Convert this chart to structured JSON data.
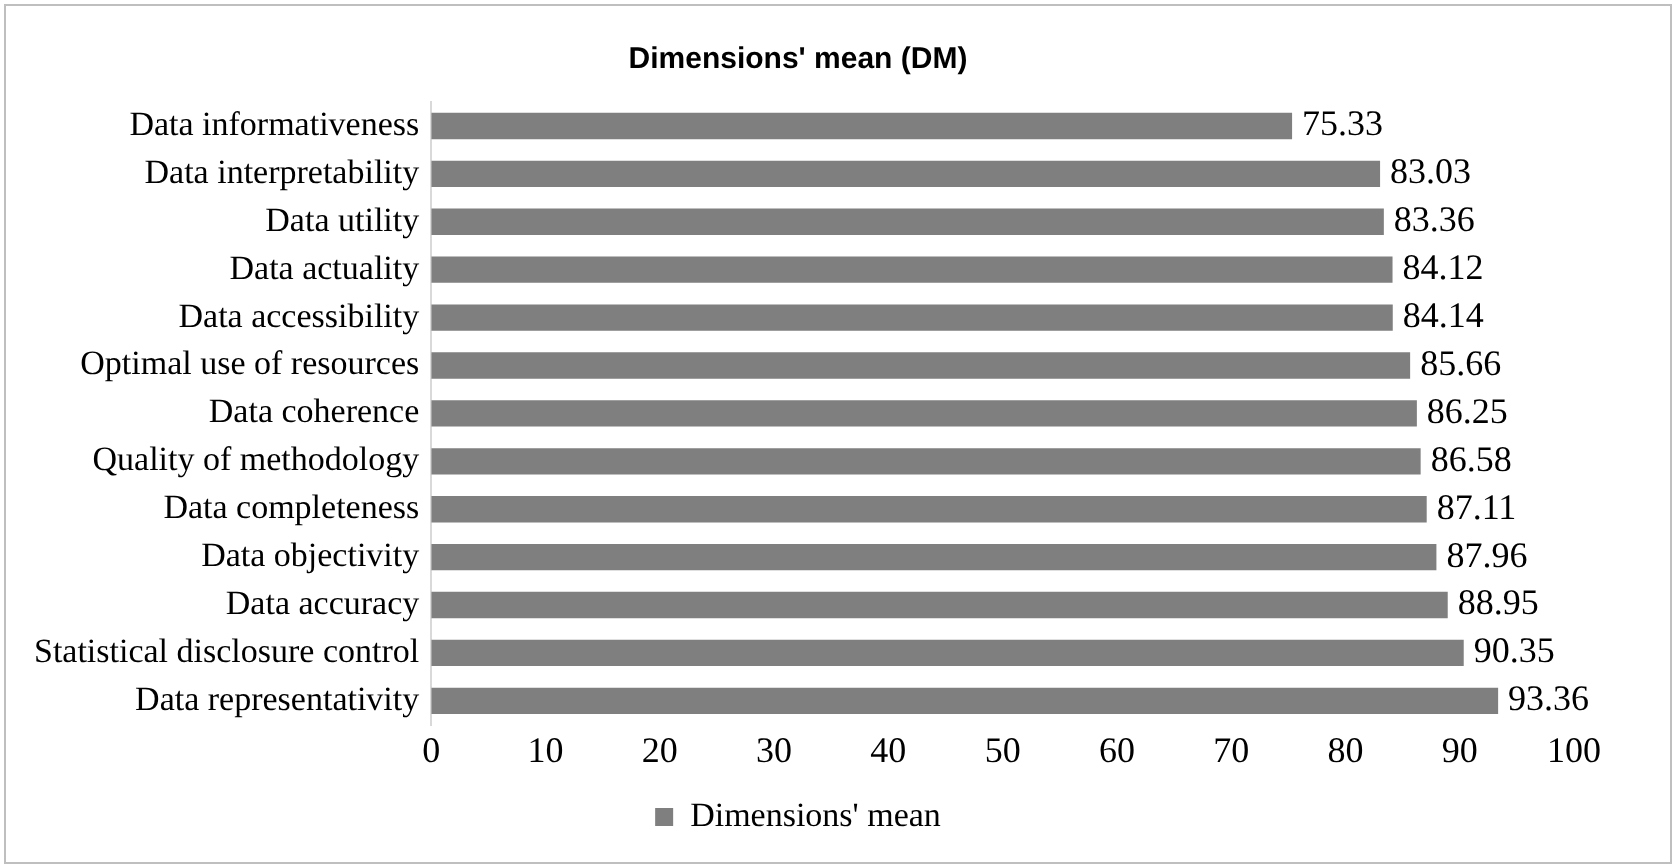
{
  "chart_data": {
    "type": "bar",
    "orientation": "horizontal",
    "title": "Dimensions' mean (DM)",
    "categories": [
      "Data informativeness",
      "Data interpretability",
      "Data utility",
      "Data actuality",
      "Data accessibility",
      "Optimal use of resources",
      "Data coherence",
      "Quality of methodology",
      "Data completeness",
      "Data objectivity",
      "Data accuracy",
      "Statistical disclosure control",
      "Data representativity"
    ],
    "series": [
      {
        "name": "Dimensions' mean",
        "color": "#7f7f7f",
        "values": [
          75.33,
          83.03,
          83.36,
          84.12,
          84.14,
          85.66,
          86.25,
          86.58,
          87.11,
          87.96,
          88.95,
          90.35,
          93.36
        ]
      }
    ],
    "xlim": [
      0,
      100
    ],
    "xticks": [
      0,
      10,
      20,
      30,
      40,
      50,
      60,
      70,
      80,
      90,
      100
    ],
    "data_labels": true,
    "grid": false,
    "legend": "bottom"
  }
}
